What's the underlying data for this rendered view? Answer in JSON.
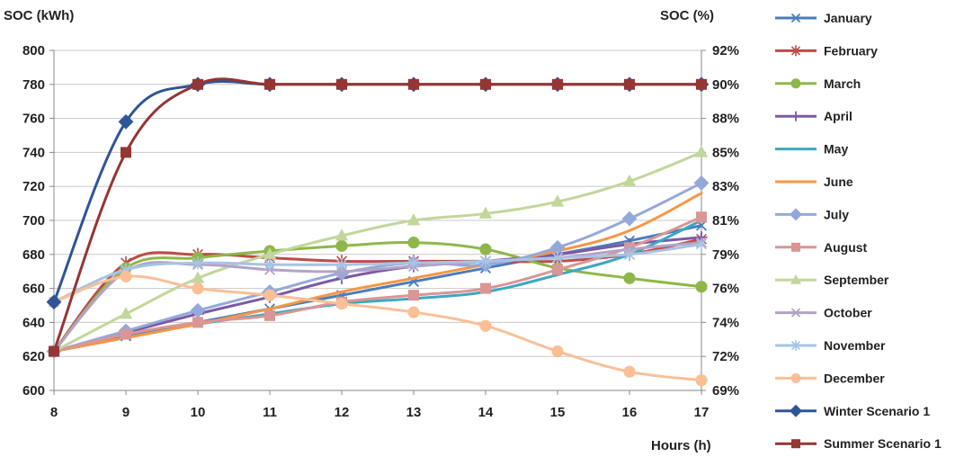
{
  "chart_data": {
    "type": "line",
    "y_left_label": "SOC (kWh)",
    "y_right_label": "SOC (%)",
    "xlabel": "Hours (h)",
    "x": [
      8,
      9,
      10,
      11,
      12,
      13,
      14,
      15,
      16,
      17
    ],
    "ylim": [
      600,
      800
    ],
    "y_ticks": [
      600,
      620,
      640,
      660,
      680,
      700,
      720,
      740,
      760,
      780,
      800
    ],
    "y_right_ticks": [
      "69%",
      "72%",
      "74%",
      "76%",
      "79%",
      "81%",
      "83%",
      "85%",
      "88%",
      "90%",
      "92%"
    ],
    "grid": "horizontal",
    "legend_position": "right",
    "series": [
      {
        "name": "January",
        "color": "#4a7ebb",
        "marker": "x",
        "values": [
          623,
          632,
          640,
          648,
          656,
          664,
          672,
          680,
          688,
          697
        ]
      },
      {
        "name": "February",
        "color": "#be4b48",
        "marker": "asterisk",
        "values": [
          623,
          675,
          680,
          678,
          676,
          676,
          676,
          676,
          680,
          689
        ]
      },
      {
        "name": "March",
        "color": "#8db849",
        "marker": "circle",
        "values": [
          623,
          672,
          678,
          682,
          685,
          687,
          683,
          672,
          666,
          661
        ]
      },
      {
        "name": "April",
        "color": "#7b5aa6",
        "marker": "plus",
        "values": [
          623,
          634,
          645,
          655,
          666,
          673,
          676,
          680,
          686,
          690
        ]
      },
      {
        "name": "May",
        "color": "#3ba8c4",
        "marker": "none",
        "values": [
          623,
          631,
          639,
          645,
          651,
          654,
          658,
          668,
          680,
          700
        ]
      },
      {
        "name": "June",
        "color": "#f79646",
        "marker": "none",
        "values": [
          623,
          631,
          639,
          648,
          658,
          666,
          674,
          682,
          694,
          716
        ]
      },
      {
        "name": "July",
        "color": "#95a9d9",
        "marker": "diamond",
        "values": [
          623,
          635,
          647,
          658,
          669,
          675,
          674,
          684,
          701,
          722
        ]
      },
      {
        "name": "August",
        "color": "#d99694",
        "marker": "square",
        "values": [
          623,
          633,
          640,
          644,
          652,
          656,
          660,
          671,
          684,
          702
        ]
      },
      {
        "name": "September",
        "color": "#c3d69b",
        "marker": "triangle",
        "values": [
          623,
          645,
          666,
          680,
          691,
          700,
          704,
          711,
          723,
          740
        ]
      },
      {
        "name": "October",
        "color": "#b3a2c7",
        "marker": "x",
        "values": [
          623,
          670,
          674,
          671,
          670,
          673,
          676,
          678,
          683,
          687
        ]
      },
      {
        "name": "November",
        "color": "#a6c4e4",
        "marker": "asterisk",
        "values": [
          652,
          671,
          675,
          674,
          674,
          675,
          676,
          678,
          680,
          686
        ]
      },
      {
        "name": "December",
        "color": "#fbbf96",
        "marker": "circle",
        "values": [
          652,
          667,
          660,
          656,
          651,
          646,
          638,
          623,
          611,
          606
        ]
      },
      {
        "name": "Winter Scenario 1",
        "color": "#2f5597",
        "marker": "diamond",
        "values": [
          652,
          758,
          780,
          780,
          780,
          780,
          780,
          780,
          780,
          780
        ]
      },
      {
        "name": "Summer Scenario 1",
        "color": "#943634",
        "marker": "square",
        "values": [
          623,
          740,
          780,
          780,
          780,
          780,
          780,
          780,
          780,
          780
        ]
      }
    ]
  }
}
